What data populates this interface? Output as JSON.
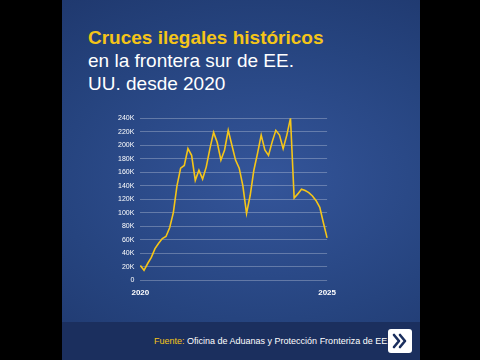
{
  "chart_data": {
    "type": "line",
    "title": "Cruces ilegales históricos",
    "subtitle": "en la frontera sur de EE. UU. desde 2020",
    "categories": [
      "2020",
      null,
      null,
      null,
      null,
      null,
      null,
      null,
      null,
      null,
      null,
      null,
      null,
      null,
      null,
      null,
      null,
      null,
      null,
      null,
      null,
      null,
      null,
      null,
      null,
      null,
      null,
      null,
      null,
      null,
      null,
      null,
      null,
      null,
      null,
      null,
      null,
      null,
      null,
      null,
      null,
      null,
      null,
      null,
      null,
      null,
      null,
      null,
      null,
      null,
      null,
      "2025"
    ],
    "values": [
      22000,
      15000,
      25000,
      34000,
      47000,
      55000,
      62000,
      65000,
      78000,
      100000,
      140000,
      166000,
      170000,
      195000,
      185000,
      148000,
      163000,
      150000,
      168000,
      195000,
      219000,
      204000,
      178000,
      193000,
      222000,
      200000,
      178000,
      166000,
      140000,
      99000,
      126000,
      163000,
      188000,
      215000,
      193000,
      185000,
      205000,
      222000,
      215000,
      195000,
      215000,
      240000,
      122000,
      128000,
      135000,
      133000,
      130000,
      125000,
      118000,
      108000,
      85000,
      63000
    ],
    "color": "#f5c518",
    "ylim": [
      0,
      240000
    ],
    "yticks": [
      0,
      {
        "value": 20000,
        "label": "20K"
      },
      {
        "value": 40000,
        "label": "40K"
      },
      {
        "value": 60000,
        "label": "60K"
      },
      {
        "value": 80000,
        "label": "80K"
      },
      {
        "value": 100000,
        "label": "100K"
      },
      {
        "value": 120000,
        "label": "120K"
      },
      {
        "value": 140000,
        "label": "140K"
      },
      {
        "value": 160000,
        "label": "160K"
      },
      {
        "value": 180000,
        "label": "180K"
      },
      {
        "value": 200000,
        "label": "200K"
      },
      {
        "value": 220000,
        "label": "220K"
      },
      {
        "value": 240000,
        "label": "240K"
      }
    ],
    "grid": true
  },
  "footer": {
    "label": "Fuente:",
    "text": "Oficina de Aduanas y Protección Fronteriza de EE. UU."
  }
}
